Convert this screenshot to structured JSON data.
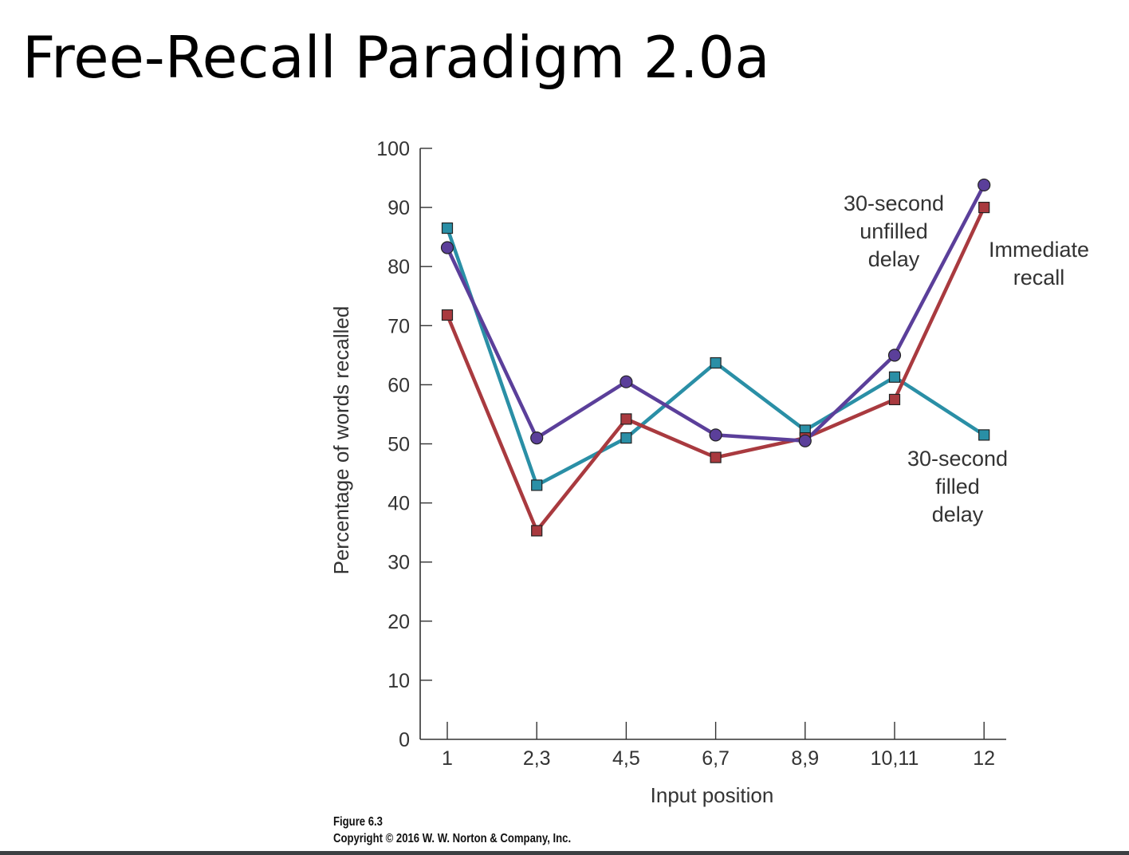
{
  "slide": {
    "title": "Free-Recall Paradigm 2.0a",
    "caption_figure": "Figure 6.3",
    "caption_copyright": "Copyright © 2016 W. W. Norton & Company, Inc."
  },
  "chart_data": {
    "type": "line",
    "title": "",
    "xlabel": "Input position",
    "ylabel": "Percentage of words recalled",
    "categories": [
      "1",
      "2,3",
      "4,5",
      "6,7",
      "8,9",
      "10,11",
      "12"
    ],
    "ylim": [
      0,
      100
    ],
    "yticks": [
      "0",
      "10",
      "20",
      "30",
      "40",
      "50",
      "60",
      "70",
      "80",
      "90",
      "100"
    ],
    "grid": false,
    "legend": "inline labels",
    "series": [
      {
        "name": "30-second unfilled delay",
        "label_lines": [
          "30-second",
          "unfilled",
          "delay"
        ],
        "color": "#5b3f9a",
        "marker": "circle",
        "values": [
          83.2,
          51,
          60.5,
          51.5,
          50.5,
          65,
          93.8
        ]
      },
      {
        "name": "Immediate recall",
        "label_lines": [
          "Immediate",
          "recall"
        ],
        "color": "#a93a3f",
        "marker": "square",
        "values": [
          71.8,
          35.3,
          54.2,
          47.7,
          51,
          57.5,
          90
        ]
      },
      {
        "name": "30-second filled delay",
        "label_lines": [
          "30-second",
          "filled",
          "delay"
        ],
        "color": "#2a8fa6",
        "marker": "square",
        "values": [
          86.5,
          43,
          51,
          63.7,
          52.3,
          61.3,
          51.5
        ]
      }
    ]
  }
}
